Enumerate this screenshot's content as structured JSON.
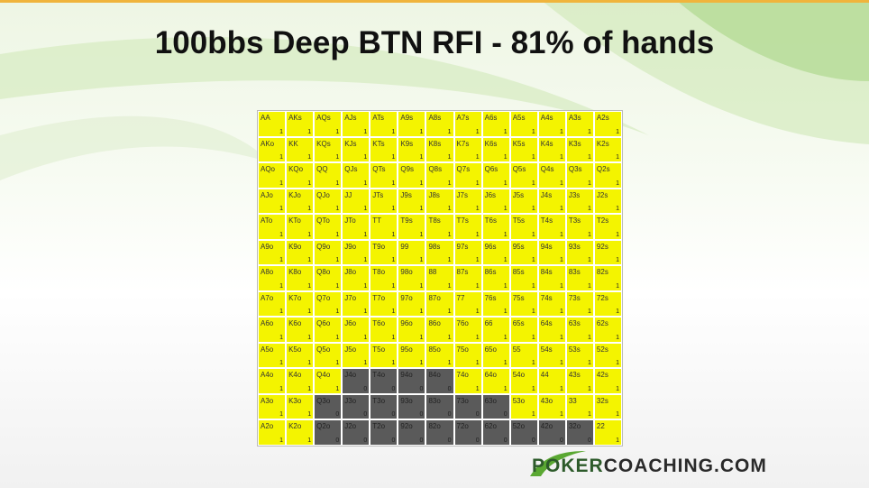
{
  "title": "100bbs Deep BTN RFI - 81% of hands",
  "grid": {
    "hands": [
      [
        "AA",
        "AKs",
        "AQs",
        "AJs",
        "ATs",
        "A9s",
        "A8s",
        "A7s",
        "A6s",
        "A5s",
        "A4s",
        "A3s",
        "A2s"
      ],
      [
        "AKo",
        "KK",
        "KQs",
        "KJs",
        "KTs",
        "K9s",
        "K8s",
        "K7s",
        "K6s",
        "K5s",
        "K4s",
        "K3s",
        "K2s"
      ],
      [
        "AQo",
        "KQo",
        "QQ",
        "QJs",
        "QTs",
        "Q9s",
        "Q8s",
        "Q7s",
        "Q6s",
        "Q5s",
        "Q4s",
        "Q3s",
        "Q2s"
      ],
      [
        "AJo",
        "KJo",
        "QJo",
        "JJ",
        "JTs",
        "J9s",
        "J8s",
        "J7s",
        "J6s",
        "J5s",
        "J4s",
        "J3s",
        "J2s"
      ],
      [
        "ATo",
        "KTo",
        "QTo",
        "JTo",
        "TT",
        "T9s",
        "T8s",
        "T7s",
        "T6s",
        "T5s",
        "T4s",
        "T3s",
        "T2s"
      ],
      [
        "A9o",
        "K9o",
        "Q9o",
        "J9o",
        "T9o",
        "99",
        "98s",
        "97s",
        "96s",
        "95s",
        "94s",
        "93s",
        "92s"
      ],
      [
        "A8o",
        "K8o",
        "Q8o",
        "J8o",
        "T8o",
        "98o",
        "88",
        "87s",
        "86s",
        "85s",
        "84s",
        "83s",
        "82s"
      ],
      [
        "A7o",
        "K7o",
        "Q7o",
        "J7o",
        "T7o",
        "97o",
        "87o",
        "77",
        "76s",
        "75s",
        "74s",
        "73s",
        "72s"
      ],
      [
        "A6o",
        "K6o",
        "Q6o",
        "J6o",
        "T6o",
        "96o",
        "86o",
        "76o",
        "66",
        "65s",
        "64s",
        "63s",
        "62s"
      ],
      [
        "A5o",
        "K5o",
        "Q5o",
        "J5o",
        "T5o",
        "95o",
        "85o",
        "75o",
        "65o",
        "55",
        "54s",
        "53s",
        "52s"
      ],
      [
        "A4o",
        "K4o",
        "Q4o",
        "J4o",
        "T4o",
        "94o",
        "84o",
        "74o",
        "64o",
        "54o",
        "44",
        "43s",
        "42s"
      ],
      [
        "A3o",
        "K3o",
        "Q3o",
        "J3o",
        "T3o",
        "93o",
        "83o",
        "73o",
        "63o",
        "53o",
        "43o",
        "33",
        "32s"
      ],
      [
        "A2o",
        "K2o",
        "Q2o",
        "J2o",
        "T2o",
        "92o",
        "82o",
        "72o",
        "62o",
        "52o",
        "42o",
        "32o",
        "22"
      ]
    ],
    "values": [
      [
        1,
        1,
        1,
        1,
        1,
        1,
        1,
        1,
        1,
        1,
        1,
        1,
        1
      ],
      [
        1,
        1,
        1,
        1,
        1,
        1,
        1,
        1,
        1,
        1,
        1,
        1,
        1
      ],
      [
        1,
        1,
        1,
        1,
        1,
        1,
        1,
        1,
        1,
        1,
        1,
        1,
        1
      ],
      [
        1,
        1,
        1,
        1,
        1,
        1,
        1,
        1,
        1,
        1,
        1,
        1,
        1
      ],
      [
        1,
        1,
        1,
        1,
        1,
        1,
        1,
        1,
        1,
        1,
        1,
        1,
        1
      ],
      [
        1,
        1,
        1,
        1,
        1,
        1,
        1,
        1,
        1,
        1,
        1,
        1,
        1
      ],
      [
        1,
        1,
        1,
        1,
        1,
        1,
        1,
        1,
        1,
        1,
        1,
        1,
        1
      ],
      [
        1,
        1,
        1,
        1,
        1,
        1,
        1,
        1,
        1,
        1,
        1,
        1,
        1
      ],
      [
        1,
        1,
        1,
        1,
        1,
        1,
        1,
        1,
        1,
        1,
        1,
        1,
        1
      ],
      [
        1,
        1,
        1,
        1,
        1,
        1,
        1,
        1,
        1,
        1,
        1,
        1,
        1
      ],
      [
        1,
        1,
        1,
        0,
        0,
        0,
        0,
        1,
        1,
        1,
        1,
        1,
        1
      ],
      [
        1,
        1,
        0,
        0,
        0,
        0,
        0,
        0,
        0,
        1,
        1,
        1,
        1
      ],
      [
        1,
        1,
        0,
        0,
        0,
        0,
        0,
        0,
        0,
        0,
        0,
        0,
        1
      ]
    ]
  },
  "logo": {
    "part1": "POKER",
    "part2": "COACHING.COM"
  }
}
